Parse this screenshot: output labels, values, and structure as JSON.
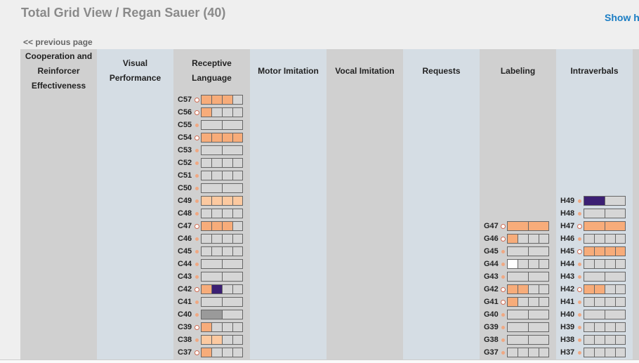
{
  "header": {
    "title": "Total Grid View / Regan Sauer (40)",
    "help_link": "Show he"
  },
  "nav": {
    "previous_page": "<< previous page"
  },
  "colors": {
    "orange": "#f7ac7a",
    "light_orange": "#fcc9a0",
    "purple": "#3b1f73",
    "gray": "#9a9a9a",
    "white": "#ffffff",
    "empty": "#d6d6d6"
  },
  "columns": [
    {
      "label": "Cooperation and Reinforcer Effectiveness",
      "bg": "#d0d0d0",
      "milestones": []
    },
    {
      "label": "Visual Performance",
      "bg": "#d5dde4",
      "milestones": []
    },
    {
      "label": "Receptive Language",
      "bg": "#d0d0d0",
      "milestones": [
        {
          "code": "C57",
          "marker": "ring",
          "boxes": [
            "orange",
            "orange",
            "orange",
            "empty"
          ]
        },
        {
          "code": "C56",
          "marker": "ring",
          "boxes": [
            "orange",
            "empty",
            "empty",
            "empty"
          ]
        },
        {
          "code": "C55",
          "marker": "dot",
          "boxes": [
            "empty",
            "empty"
          ]
        },
        {
          "code": "C54",
          "marker": "ring",
          "boxes": [
            "orange",
            "orange",
            "orange",
            "orange"
          ]
        },
        {
          "code": "C53",
          "marker": "dot",
          "boxes": [
            "empty",
            "empty"
          ]
        },
        {
          "code": "C52",
          "marker": "dot",
          "boxes": [
            "empty",
            "empty",
            "empty",
            "empty"
          ]
        },
        {
          "code": "C51",
          "marker": "dot",
          "boxes": [
            "empty",
            "empty",
            "empty",
            "empty"
          ]
        },
        {
          "code": "C50",
          "marker": "dot",
          "boxes": [
            "empty",
            "empty"
          ]
        },
        {
          "code": "C49",
          "marker": "dot",
          "boxes": [
            "light_orange",
            "light_orange",
            "light_orange",
            "light_orange"
          ]
        },
        {
          "code": "C48",
          "marker": "dot",
          "boxes": [
            "empty",
            "empty",
            "empty",
            "empty"
          ]
        },
        {
          "code": "C47",
          "marker": "ring",
          "boxes": [
            "orange",
            "orange",
            "orange",
            "empty"
          ]
        },
        {
          "code": "C46",
          "marker": "dot",
          "boxes": [
            "empty",
            "empty",
            "empty",
            "empty"
          ]
        },
        {
          "code": "C45",
          "marker": "dot",
          "boxes": [
            "empty",
            "empty",
            "empty",
            "empty"
          ]
        },
        {
          "code": "C44",
          "marker": "dot",
          "boxes": [
            "empty",
            "empty"
          ]
        },
        {
          "code": "C43",
          "marker": "dot",
          "boxes": [
            "empty",
            "empty"
          ]
        },
        {
          "code": "C42",
          "marker": "ring",
          "boxes": [
            "orange",
            "purple",
            "empty",
            "empty"
          ]
        },
        {
          "code": "C41",
          "marker": "dot",
          "boxes": [
            "empty",
            "empty"
          ]
        },
        {
          "code": "C40",
          "marker": "dot",
          "boxes": [
            "gray",
            "empty"
          ]
        },
        {
          "code": "C39",
          "marker": "ring",
          "boxes": [
            "orange",
            "empty",
            "empty",
            "empty"
          ]
        },
        {
          "code": "C38",
          "marker": "dot",
          "boxes": [
            "light_orange",
            "light_orange",
            "empty",
            "empty"
          ]
        },
        {
          "code": "C37",
          "marker": "ring",
          "boxes": [
            "orange",
            "empty",
            "empty",
            "empty"
          ]
        }
      ]
    },
    {
      "label": "Motor Imitation",
      "bg": "#d5dde4",
      "milestones": []
    },
    {
      "label": "Vocal Imitation",
      "bg": "#d0d0d0",
      "milestones": []
    },
    {
      "label": "Requests",
      "bg": "#d5dde4",
      "milestones": []
    },
    {
      "label": "Labeling",
      "bg": "#d0d0d0",
      "milestones": [
        {
          "code": "G47",
          "marker": "ring",
          "boxes": [
            "orange",
            "orange"
          ]
        },
        {
          "code": "G46",
          "marker": "ring",
          "boxes": [
            "orange",
            "empty",
            "empty",
            "empty"
          ]
        },
        {
          "code": "G45",
          "marker": "dot",
          "boxes": [
            "empty",
            "empty"
          ]
        },
        {
          "code": "G44",
          "marker": "dot",
          "boxes": [
            "white",
            "empty",
            "empty",
            "empty"
          ]
        },
        {
          "code": "G43",
          "marker": "dot",
          "boxes": [
            "empty",
            "empty"
          ]
        },
        {
          "code": "G42",
          "marker": "ring",
          "boxes": [
            "orange",
            "orange",
            "empty",
            "empty"
          ]
        },
        {
          "code": "G41",
          "marker": "ring",
          "boxes": [
            "orange",
            "empty",
            "empty",
            "empty"
          ]
        },
        {
          "code": "G40",
          "marker": "dot",
          "boxes": [
            "empty",
            "empty"
          ]
        },
        {
          "code": "G39",
          "marker": "dot",
          "boxes": [
            "empty",
            "empty"
          ]
        },
        {
          "code": "G38",
          "marker": "dot",
          "boxes": [
            "empty",
            "empty"
          ]
        },
        {
          "code": "G37",
          "marker": "dot",
          "boxes": [
            "empty",
            "empty",
            "empty",
            "empty"
          ]
        }
      ]
    },
    {
      "label": "Intraverbals",
      "bg": "#d5dde4",
      "milestones": [
        {
          "code": "H49",
          "marker": "dot",
          "boxes": [
            "purple",
            "empty"
          ]
        },
        {
          "code": "H48",
          "marker": "dot",
          "boxes": [
            "empty",
            "empty"
          ]
        },
        {
          "code": "H47",
          "marker": "ring",
          "boxes": [
            "orange",
            "orange"
          ]
        },
        {
          "code": "H46",
          "marker": "dot",
          "boxes": [
            "empty",
            "empty",
            "empty",
            "empty"
          ]
        },
        {
          "code": "H45",
          "marker": "ring",
          "boxes": [
            "orange",
            "orange",
            "orange",
            "orange"
          ]
        },
        {
          "code": "H44",
          "marker": "dot",
          "boxes": [
            "empty",
            "empty",
            "empty",
            "empty"
          ]
        },
        {
          "code": "H43",
          "marker": "dot",
          "boxes": [
            "empty",
            "empty"
          ]
        },
        {
          "code": "H42",
          "marker": "ring",
          "boxes": [
            "orange",
            "orange",
            "empty",
            "empty"
          ]
        },
        {
          "code": "H41",
          "marker": "dot",
          "boxes": [
            "empty",
            "empty",
            "empty",
            "empty"
          ]
        },
        {
          "code": "H40",
          "marker": "dot",
          "boxes": [
            "empty",
            "empty"
          ]
        },
        {
          "code": "H39",
          "marker": "dot",
          "boxes": [
            "empty",
            "empty",
            "empty",
            "empty"
          ]
        },
        {
          "code": "H38",
          "marker": "dot",
          "boxes": [
            "empty",
            "empty",
            "empty",
            "empty"
          ]
        },
        {
          "code": "H37",
          "marker": "dot",
          "boxes": [
            "empty",
            "empty",
            "empty",
            "empty"
          ]
        }
      ]
    },
    {
      "label": "",
      "bg": "#d0d0d0",
      "milestones": []
    }
  ]
}
